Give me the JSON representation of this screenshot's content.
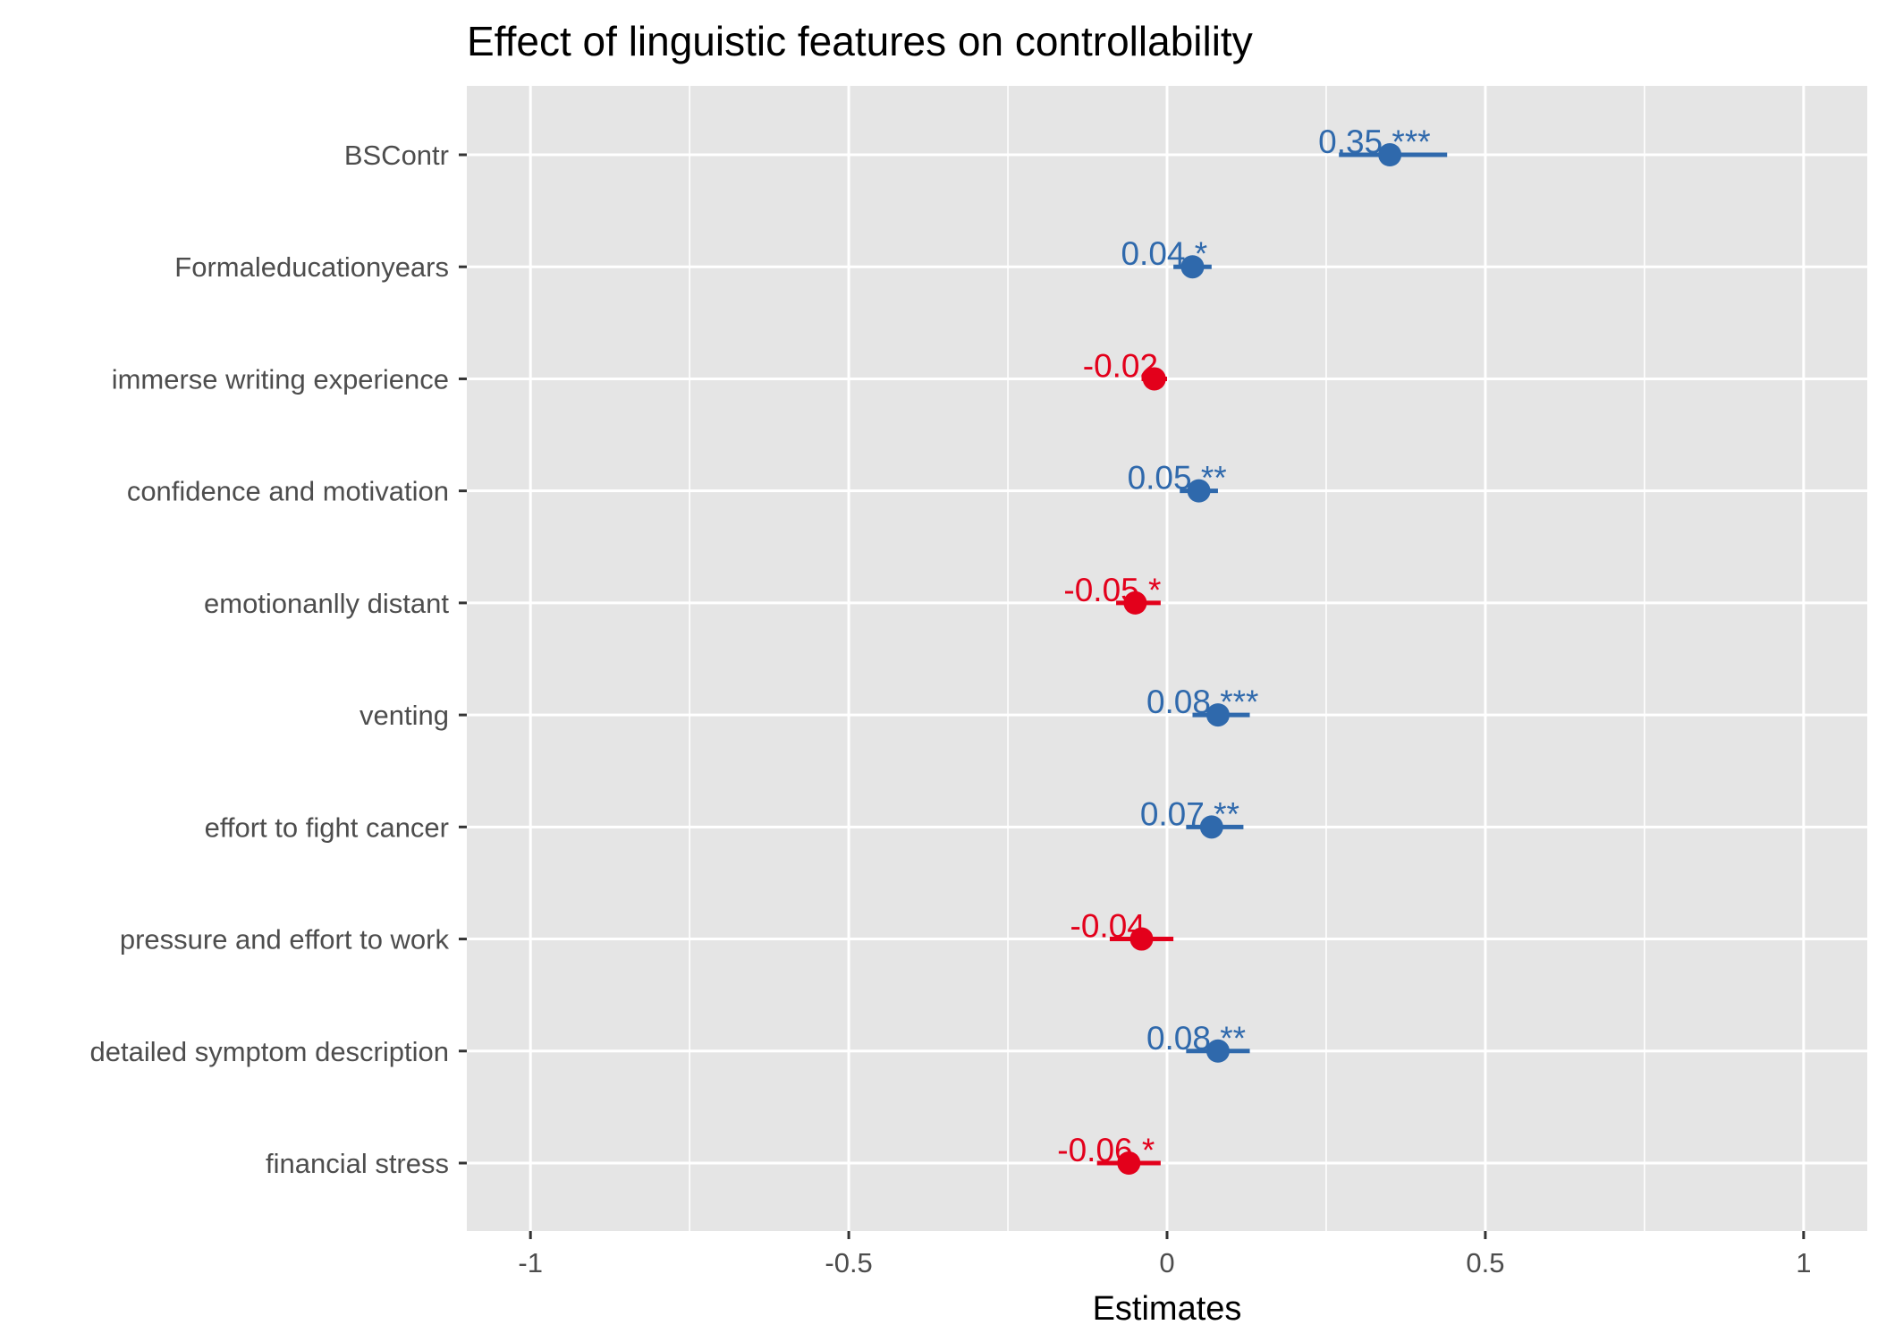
{
  "chart_data": {
    "type": "forest",
    "title": "Effect of linguistic features on controllability",
    "xlabel": "Estimates",
    "ylabel": "",
    "xlim": [
      -1.1,
      1.1
    ],
    "x_ticks": [
      "-1",
      "-0.5",
      "0",
      "0.5",
      "1"
    ],
    "x_tick_values": [
      -1,
      -0.5,
      0,
      0.5,
      1
    ],
    "grid": true,
    "colors": {
      "positive": "#2f69ac",
      "negative": "#e3001b",
      "panel": "#e5e5e5",
      "grid": "#ffffff"
    },
    "terms": [
      {
        "term": "BSContr",
        "estimate": 0.35,
        "ci_low": 0.27,
        "ci_high": 0.44,
        "label": "0.35 ***"
      },
      {
        "term": "Formaleducationyears",
        "estimate": 0.04,
        "ci_low": 0.01,
        "ci_high": 0.07,
        "label": "0.04 *"
      },
      {
        "term": "immerse writing experience",
        "estimate": -0.02,
        "ci_low": -0.04,
        "ci_high": 0.0,
        "label": "-0.02"
      },
      {
        "term": "confidence and motivation",
        "estimate": 0.05,
        "ci_low": 0.02,
        "ci_high": 0.08,
        "label": "0.05 **"
      },
      {
        "term": "emotionanlly distant",
        "estimate": -0.05,
        "ci_low": -0.08,
        "ci_high": -0.01,
        "label": "-0.05 *"
      },
      {
        "term": "venting",
        "estimate": 0.08,
        "ci_low": 0.04,
        "ci_high": 0.13,
        "label": "0.08 ***"
      },
      {
        "term": "effort to fight cancer",
        "estimate": 0.07,
        "ci_low": 0.03,
        "ci_high": 0.12,
        "label": "0.07 **"
      },
      {
        "term": "pressure and effort to work",
        "estimate": -0.04,
        "ci_low": -0.09,
        "ci_high": 0.01,
        "label": "-0.04"
      },
      {
        "term": "detailed symptom description",
        "estimate": 0.08,
        "ci_low": 0.03,
        "ci_high": 0.13,
        "label": "0.08 **"
      },
      {
        "term": "financial stress",
        "estimate": -0.06,
        "ci_low": -0.11,
        "ci_high": -0.01,
        "label": "-0.06 *"
      }
    ]
  }
}
